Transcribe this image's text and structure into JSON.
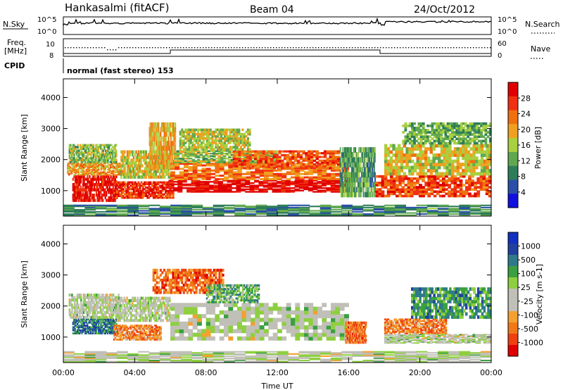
{
  "header": {
    "station": "Hankasalmi (fitACF)",
    "beam": "Beam 04",
    "date": "24/Oct/2012"
  },
  "aux": {
    "nsky_label": "N.Sky",
    "nsearch_label": "N.Search",
    "freq_label_1": "Freq.",
    "freq_label_2": "[MHz]",
    "nave_label": "Nave",
    "cpid_label": "CPID",
    "cpid_text": "normal (fast stereo) 153",
    "noise_ticks_left": [
      "10^5",
      "10^0"
    ],
    "noise_ticks_right": [
      "10^5",
      "10^0"
    ],
    "freq_ticks": [
      "10",
      "8"
    ],
    "nave_ticks": [
      "60",
      "0"
    ]
  },
  "colors": {
    "power_scale": [
      "#1010e0",
      "#2a4fa8",
      "#2e7d5a",
      "#5fa84f",
      "#a8d040",
      "#f0a020",
      "#f07010",
      "#f03010",
      "#e00000"
    ],
    "velocity_scale": [
      "#e00000",
      "#ee4010",
      "#f07818",
      "#f5a030",
      "#c0c0b8",
      "#c0c0b8",
      "#8ecf40",
      "#3aa040",
      "#2f7a8a",
      "#2040a0",
      "#1030c0"
    ],
    "ground_scatter": "#c0c0b8"
  },
  "chart_data": [
    {
      "type": "heatmap",
      "name": "power",
      "ylabel": "Slant Range [km]",
      "xlabel": "",
      "xlim": [
        0,
        24
      ],
      "ylim": [
        180,
        4600
      ],
      "yticks": [
        "1000",
        "2000",
        "3000",
        "4000"
      ],
      "colorbar": {
        "label": "Power [dB]",
        "ticks": [
          "28",
          "24",
          "20",
          "16",
          "12",
          "8",
          "4"
        ],
        "range": [
          0,
          30
        ]
      },
      "bands": [
        {
          "t0": 0.5,
          "t1": 3.0,
          "r0": 650,
          "r1": 1500,
          "level": 0.92
        },
        {
          "t0": 0.2,
          "t1": 3.2,
          "r0": 1500,
          "r1": 1900,
          "level": 0.65
        },
        {
          "t0": 0.3,
          "t1": 3.0,
          "r0": 1900,
          "r1": 2500,
          "level": 0.45
        },
        {
          "t0": 2.8,
          "t1": 6.2,
          "r0": 750,
          "r1": 1300,
          "level": 0.85
        },
        {
          "t0": 3.2,
          "t1": 6.0,
          "r0": 1400,
          "r1": 2300,
          "level": 0.55
        },
        {
          "t0": 4.8,
          "t1": 6.3,
          "r0": 1700,
          "r1": 3200,
          "level": 0.62
        },
        {
          "t0": 5.9,
          "t1": 16.0,
          "r0": 950,
          "r1": 1350,
          "level": 0.95
        },
        {
          "t0": 6.0,
          "t1": 16.0,
          "r0": 1350,
          "r1": 1900,
          "level": 0.72
        },
        {
          "t0": 6.2,
          "t1": 12.0,
          "r0": 1900,
          "r1": 2300,
          "level": 0.45
        },
        {
          "t0": 9.5,
          "t1": 15.5,
          "r0": 1700,
          "r1": 2300,
          "level": 0.78
        },
        {
          "t0": 6.5,
          "t1": 10.5,
          "r0": 2300,
          "r1": 3000,
          "level": 0.5
        },
        {
          "t0": 15.5,
          "t1": 17.5,
          "r0": 800,
          "r1": 2400,
          "level": 0.35
        },
        {
          "t0": 17.5,
          "t1": 24.0,
          "r0": 800,
          "r1": 1500,
          "level": 0.8
        },
        {
          "t0": 18.0,
          "t1": 24.0,
          "r0": 1500,
          "r1": 2500,
          "level": 0.55
        },
        {
          "t0": 19.0,
          "t1": 24.0,
          "r0": 2500,
          "r1": 3200,
          "level": 0.4
        },
        {
          "t0": 0.0,
          "t1": 24.0,
          "r0": 200,
          "r1": 550,
          "level": 0.3
        }
      ]
    },
    {
      "type": "heatmap",
      "name": "velocity",
      "ylabel": "Slant Range [km]",
      "xlabel": "Time UT",
      "xlim": [
        0,
        24
      ],
      "ylim": [
        180,
        4600
      ],
      "xticks": [
        "00:00",
        "04:00",
        "08:00",
        "12:00",
        "16:00",
        "20:00",
        "00:00"
      ],
      "yticks": [
        "1000",
        "2000",
        "3000",
        "4000"
      ],
      "colorbar": {
        "label": "Velocity [m s-1]",
        "ticks": [
          "1000",
          "500",
          "100",
          "25",
          "-25",
          "-100",
          "-500",
          "-1000"
        ],
        "range": [
          -1000,
          1000
        ]
      },
      "bands": [
        {
          "t0": 0.5,
          "t1": 3.0,
          "r0": 1100,
          "r1": 1600,
          "level": 0.78
        },
        {
          "t0": 0.3,
          "t1": 3.2,
          "r0": 1600,
          "r1": 2400,
          "level": 0.5
        },
        {
          "t0": 2.8,
          "t1": 5.5,
          "r0": 900,
          "r1": 1400,
          "level": 0.25
        },
        {
          "t0": 3.0,
          "t1": 6.0,
          "r0": 1500,
          "r1": 2300,
          "level": 0.5
        },
        {
          "t0": 5.0,
          "t1": 9.0,
          "r0": 2400,
          "r1": 3200,
          "level": 0.2
        },
        {
          "t0": 6.0,
          "t1": 16.0,
          "r0": 900,
          "r1": 2100,
          "level": 0.5
        },
        {
          "t0": 8.0,
          "t1": 11.0,
          "r0": 2100,
          "r1": 2700,
          "level": 0.65
        },
        {
          "t0": 15.8,
          "t1": 17.0,
          "r0": 800,
          "r1": 1500,
          "level": 0.22
        },
        {
          "t0": 18.0,
          "t1": 21.5,
          "r0": 1100,
          "r1": 1600,
          "level": 0.25
        },
        {
          "t0": 19.5,
          "t1": 24.0,
          "r0": 1600,
          "r1": 2600,
          "level": 0.7
        },
        {
          "t0": 18.0,
          "t1": 24.0,
          "r0": 800,
          "r1": 1100,
          "level": 0.5
        },
        {
          "t0": 0.0,
          "t1": 24.0,
          "r0": 200,
          "r1": 550,
          "level": 0.5
        }
      ]
    }
  ]
}
